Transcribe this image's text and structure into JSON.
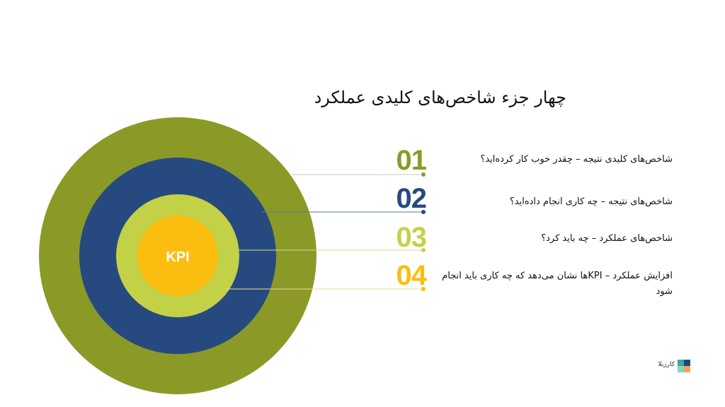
{
  "title": "چهار جزء شاخص‌های کلیدی عملکرد",
  "center_label": "KPI",
  "colors": {
    "outer_ring": "#8b9a27",
    "middle_ring": "#264a80",
    "inner_ring": "#c3d146",
    "core": "#fbbd0f",
    "title": "#111111"
  },
  "items": [
    {
      "number": "01",
      "text": "شاخص‌های کلیدی نتیجه – چقدر خوب کار کرده‌اید؟",
      "color": "#8b9a27"
    },
    {
      "number": "02",
      "text": "شاخص‌های نتیجه – چه کاری انجام داده‌اید؟",
      "color": "#264a80"
    },
    {
      "number": "03",
      "text": "شاخص‌های عملکرد – چه باید کرد؟",
      "color": "#c3d146"
    },
    {
      "number": "04",
      "text": "افزایش عملکرد – KPIها نشان می‌دهد که چه کاری باید انجام شود",
      "color": "#fbbd0f"
    }
  ],
  "brand": {
    "name": "کارزیلا",
    "logo_colors": [
      "#3fa7a0",
      "#1f4a7c",
      "#8cd3c5",
      "#f4a35c"
    ]
  }
}
